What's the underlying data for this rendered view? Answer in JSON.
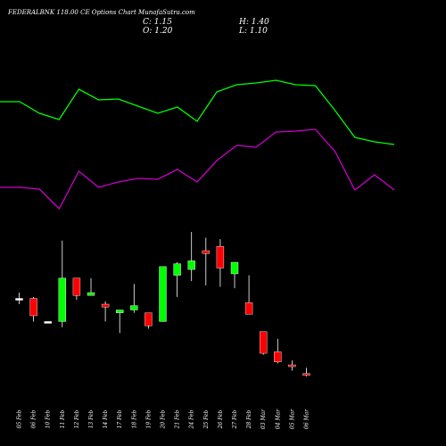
{
  "header": {
    "title": "FEDERALBNK 118.00 CE Options Chart MunafaSutra.com",
    "c": "C: 1.15",
    "h": "H: 1.40",
    "o": "O: 1.20",
    "l": "L: 1.10"
  },
  "chart_data": {
    "type": "candlestick",
    "title": "FEDERALBNK 118.00 CE Options Chart MunafaSutra.com",
    "categories": [
      "05 Feb",
      "06 Feb",
      "10 Feb",
      "11 Feb",
      "12 Feb",
      "13 Feb",
      "14 Feb",
      "17 Feb",
      "18 Feb",
      "19 Feb",
      "20 Feb",
      "21 Feb",
      "24 Feb",
      "25 Feb",
      "26 Feb",
      "27 Feb",
      "28 Feb",
      "03 Mar",
      "04 Mar",
      "05 Mar",
      "06 Mar"
    ],
    "series": [
      {
        "open": 3.8,
        "high": 4.0,
        "low": 3.6,
        "close": 3.8
      },
      {
        "open": 3.8,
        "high": 3.85,
        "low": 3.0,
        "close": 3.2
      },
      {
        "open": 3.0,
        "high": 3.0,
        "low": 3.0,
        "close": 3.0
      },
      {
        "open": 3.0,
        "high": 5.8,
        "low": 2.8,
        "close": 4.5
      },
      {
        "open": 4.5,
        "high": 4.5,
        "low": 3.75,
        "close": 3.9
      },
      {
        "open": 3.9,
        "high": 4.5,
        "low": 3.9,
        "close": 4.0
      },
      {
        "open": 3.6,
        "high": 3.7,
        "low": 3.0,
        "close": 3.5
      },
      {
        "open": 3.3,
        "high": 3.4,
        "low": 2.6,
        "close": 3.4
      },
      {
        "open": 3.4,
        "high": 4.3,
        "low": 3.3,
        "close": 3.55
      },
      {
        "open": 3.3,
        "high": 3.3,
        "low": 2.75,
        "close": 2.85
      },
      {
        "open": 3.0,
        "high": 4.9,
        "low": 3.0,
        "close": 4.9
      },
      {
        "open": 4.6,
        "high": 5.05,
        "low": 3.85,
        "close": 5.0
      },
      {
        "open": 4.8,
        "high": 6.1,
        "low": 4.4,
        "close": 5.1
      },
      {
        "open": 5.45,
        "high": 5.9,
        "low": 4.25,
        "close": 5.35
      },
      {
        "open": 5.6,
        "high": 5.85,
        "low": 4.2,
        "close": 4.85
      },
      {
        "open": 4.65,
        "high": 4.85,
        "low": 4.15,
        "close": 5.05
      },
      {
        "open": 3.65,
        "high": 4.6,
        "low": 3.25,
        "close": 3.25
      },
      {
        "open": 2.65,
        "high": 2.65,
        "low": 1.85,
        "close": 1.9
      },
      {
        "open": 1.95,
        "high": 2.4,
        "low": 1.55,
        "close": 1.6
      },
      {
        "open": 1.5,
        "high": 1.65,
        "low": 1.3,
        "close": 1.45
      },
      {
        "open": 1.2,
        "high": 1.4,
        "low": 1.1,
        "close": 1.15
      }
    ],
    "indicator_lines": [
      {
        "color": "#00ff00",
        "values": [
          114,
          114,
          127,
          134,
          100,
          112,
          111,
          119,
          127,
          120,
          136,
          103,
          95,
          93,
          90,
          95,
          96,
          124,
          154,
          159,
          162
        ]
      },
      {
        "color": "#cc00cc",
        "values": [
          210,
          210,
          212,
          234,
          192,
          210,
          204,
          200,
          201,
          190,
          204,
          180,
          163,
          165,
          148,
          147,
          145,
          170,
          213,
          196,
          213
        ]
      }
    ],
    "indicator_x_start": 0,
    "indicator_x_step": 22.1,
    "colors": {
      "up": "#00ff00",
      "down": "#ff0000",
      "neutral": "#ffffff",
      "background": "#000000"
    }
  }
}
